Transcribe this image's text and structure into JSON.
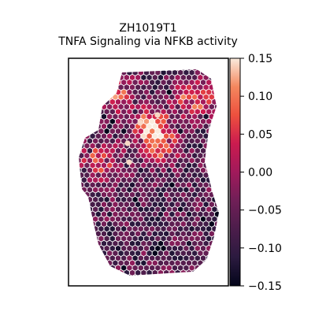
{
  "chart_data": {
    "type": "scatter",
    "marker": "hexagon",
    "title_line1": "ZH1019T1",
    "title_line2": "TNFA Signaling via NFKB activity",
    "xlabel": "",
    "ylabel": "",
    "axis_ticks": "none",
    "grid": false,
    "colorbar": {
      "position": "right",
      "colormap": "rocket",
      "vmin": -0.15,
      "vmax": 0.15,
      "ticks": [
        0.15,
        0.1,
        0.05,
        0.0,
        -0.05,
        -0.1,
        -0.15
      ],
      "tick_labels": [
        "0.15",
        "0.10",
        "0.05",
        "0.00",
        "−0.05",
        "−0.10",
        "−0.15"
      ]
    },
    "hotspots": [
      {
        "region": "upper-right",
        "value": 0.09
      },
      {
        "region": "upper-left",
        "value": 0.08
      },
      {
        "region": "center-top",
        "value": 0.13
      },
      {
        "region": "center",
        "value": 0.07
      },
      {
        "region": "left-middle",
        "value": 0.08
      }
    ],
    "background_level": -0.07
  },
  "colors": {
    "text": "#000000",
    "axes": "#000000",
    "bright_spot": "#f7d9c6"
  }
}
